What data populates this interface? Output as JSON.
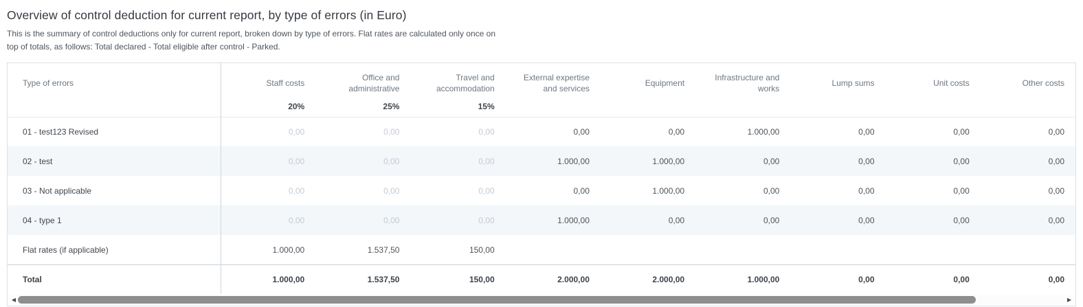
{
  "page": {
    "title": "Overview of control deduction for current report, by type of errors (in Euro)",
    "description": "This is the summary of control deductions only for current report, broken down by type of errors. Flat rates are calculated only once on top of totals, as follows: Total declared - Total eligible after control - Parked."
  },
  "table": {
    "columns": [
      {
        "label": "Type of errors",
        "pct": ""
      },
      {
        "label": "Staff costs",
        "pct": "20%"
      },
      {
        "label": "Office and administrative",
        "pct": "25%"
      },
      {
        "label": "Travel and accommodation",
        "pct": "15%"
      },
      {
        "label": "External expertise and services",
        "pct": ""
      },
      {
        "label": "Equipment",
        "pct": ""
      },
      {
        "label": "Infrastructure and works",
        "pct": ""
      },
      {
        "label": "Lump sums",
        "pct": ""
      },
      {
        "label": "Unit costs",
        "pct": ""
      },
      {
        "label": "Other costs",
        "pct": ""
      }
    ],
    "rows": [
      {
        "label": "01 - test123 Revised",
        "values": [
          "0,00",
          "0,00",
          "0,00",
          "0,00",
          "0,00",
          "1.000,00",
          "0,00",
          "0,00",
          "0,00"
        ]
      },
      {
        "label": "02 - test",
        "values": [
          "0,00",
          "0,00",
          "0,00",
          "1.000,00",
          "1.000,00",
          "0,00",
          "0,00",
          "0,00",
          "0,00"
        ]
      },
      {
        "label": "03 - Not applicable",
        "values": [
          "0,00",
          "0,00",
          "0,00",
          "0,00",
          "1.000,00",
          "0,00",
          "0,00",
          "0,00",
          "0,00"
        ]
      },
      {
        "label": "04 - type 1",
        "values": [
          "0,00",
          "0,00",
          "0,00",
          "1.000,00",
          "0,00",
          "0,00",
          "0,00",
          "0,00",
          "0,00"
        ]
      },
      {
        "label": "Flat rates (if applicable)",
        "values": [
          "1.000,00",
          "1.537,50",
          "150,00",
          "",
          "",
          "",
          "",
          "",
          ""
        ]
      },
      {
        "label": "Total",
        "values": [
          "1.000,00",
          "1.537,50",
          "150,00",
          "2.000,00",
          "2.000,00",
          "1.000,00",
          "0,00",
          "0,00",
          "0,00"
        ]
      }
    ]
  },
  "scrollbar": {
    "left_icon": "◀",
    "right_icon": "▶"
  },
  "colors": {
    "alt_row_bg": "#f3f7fa",
    "divider": "#ccd6de",
    "muted_value": "#c4cad1",
    "header_text": "#6d7680",
    "scroll_thumb": "#8e8e8e"
  }
}
